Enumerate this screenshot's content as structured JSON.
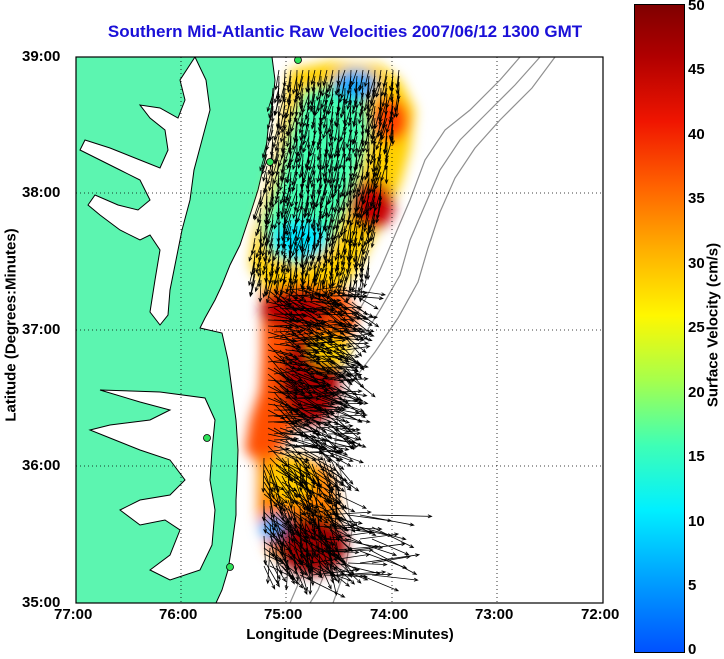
{
  "title": "Southern Mid-Atlantic Raw Velocities 2007/06/12 1300 GMT",
  "xaxis": {
    "label": "Longitude (Degrees:Minutes)",
    "ticks": [
      "77:00",
      "76:00",
      "75:00",
      "74:00",
      "73:00",
      "72:00"
    ]
  },
  "yaxis": {
    "label": "Latitude (Degrees:Minutes)",
    "ticks": [
      "39:00",
      "38:00",
      "37:00",
      "36:00",
      "35:00"
    ]
  },
  "colorbar": {
    "label": "Surface Velocity (cm/s)",
    "ticks": [
      "0",
      "5",
      "10",
      "15",
      "20",
      "25",
      "30",
      "35",
      "40",
      "45",
      "50"
    ],
    "range": [
      0,
      50
    ]
  },
  "colors": {
    "land": "#5cf5b0",
    "title": "#1a10d8",
    "arrow": "#000000",
    "bathymetry": "#909090"
  }
}
